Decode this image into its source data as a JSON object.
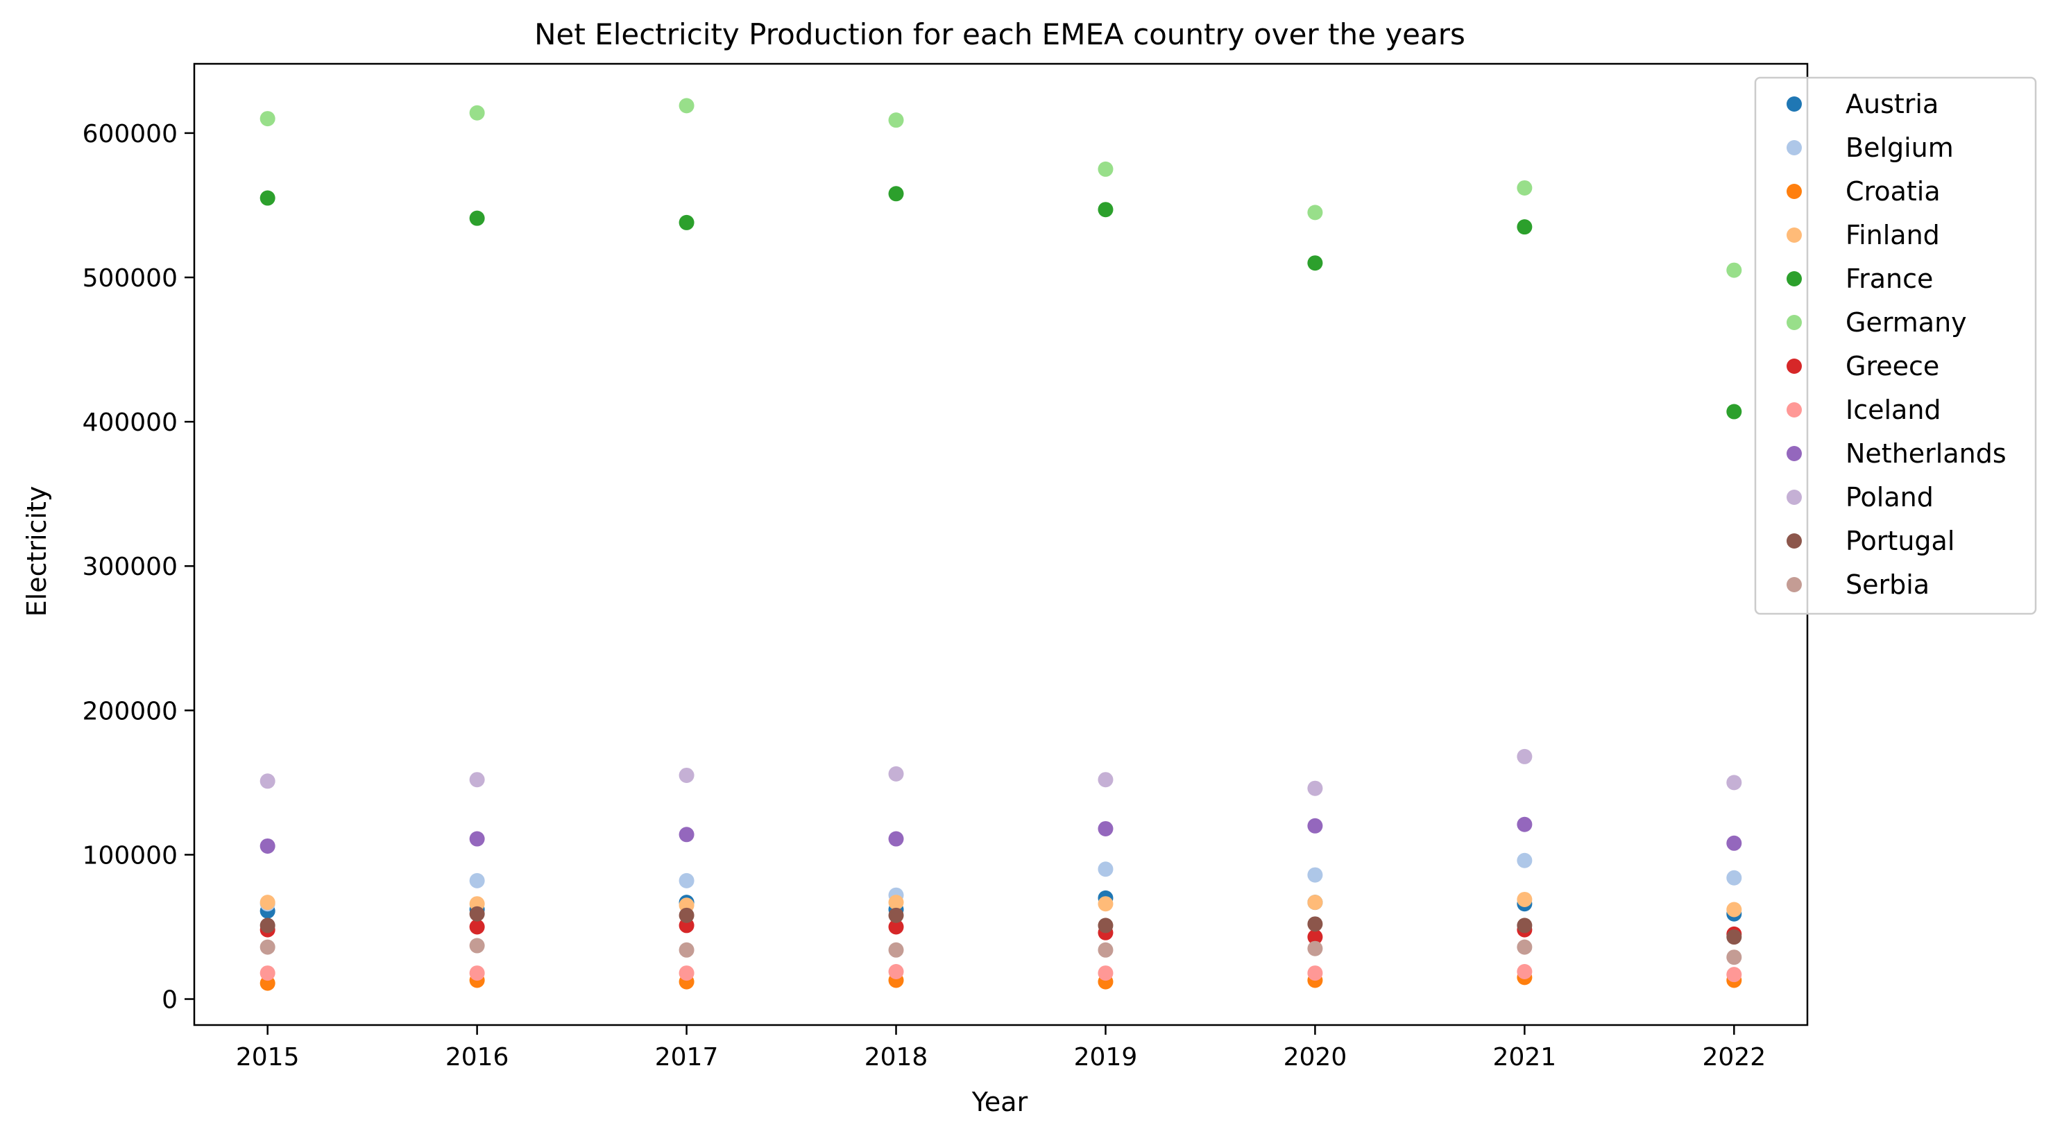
{
  "chart_data": {
    "type": "scatter",
    "title": "Net Electricity Production for each EMEA country over the years",
    "xlabel": "Year",
    "ylabel": "Electricity",
    "x": [
      2015,
      2016,
      2017,
      2018,
      2019,
      2020,
      2021,
      2022
    ],
    "xlim": [
      2014.65,
      2022.35
    ],
    "ylim": [
      -18000,
      648000
    ],
    "yticks": [
      0,
      100000,
      200000,
      300000,
      400000,
      500000,
      600000
    ],
    "grid": false,
    "legend_position": "top-right",
    "series": [
      {
        "name": "Austria",
        "color": "#1f77b4",
        "values": [
          61000,
          62000,
          67000,
          62000,
          70000,
          67000,
          66000,
          59000
        ]
      },
      {
        "name": "Belgium",
        "color": "#aec7e8",
        "values": [
          66000,
          82000,
          82000,
          72000,
          90000,
          86000,
          96000,
          84000
        ]
      },
      {
        "name": "Croatia",
        "color": "#ff7f0e",
        "values": [
          11000,
          13000,
          12000,
          13000,
          12000,
          13000,
          15000,
          13000
        ]
      },
      {
        "name": "Finland",
        "color": "#ffbb78",
        "values": [
          67000,
          66000,
          65000,
          67000,
          66000,
          67000,
          69000,
          62000
        ]
      },
      {
        "name": "France",
        "color": "#2ca02c",
        "values": [
          555000,
          541000,
          538000,
          558000,
          547000,
          510000,
          535000,
          407000
        ]
      },
      {
        "name": "Germany",
        "color": "#98df8a",
        "values": [
          610000,
          614000,
          619000,
          609000,
          575000,
          545000,
          562000,
          505000
        ]
      },
      {
        "name": "Greece",
        "color": "#d62728",
        "values": [
          48000,
          50000,
          51000,
          50000,
          46000,
          43000,
          48000,
          45000
        ]
      },
      {
        "name": "Iceland",
        "color": "#ff9896",
        "values": [
          18000,
          18000,
          18000,
          19000,
          18000,
          18000,
          19000,
          17000
        ]
      },
      {
        "name": "Netherlands",
        "color": "#9467bd",
        "values": [
          106000,
          111000,
          114000,
          111000,
          118000,
          120000,
          121000,
          108000
        ]
      },
      {
        "name": "Poland",
        "color": "#c5b0d5",
        "values": [
          151000,
          152000,
          155000,
          156000,
          152000,
          146000,
          168000,
          150000
        ]
      },
      {
        "name": "Portugal",
        "color": "#8c564b",
        "values": [
          51000,
          59000,
          58000,
          58000,
          51000,
          52000,
          51000,
          43000
        ]
      },
      {
        "name": "Serbia",
        "color": "#c49c94",
        "values": [
          36000,
          37000,
          34000,
          34000,
          34000,
          35000,
          36000,
          29000
        ]
      }
    ]
  }
}
